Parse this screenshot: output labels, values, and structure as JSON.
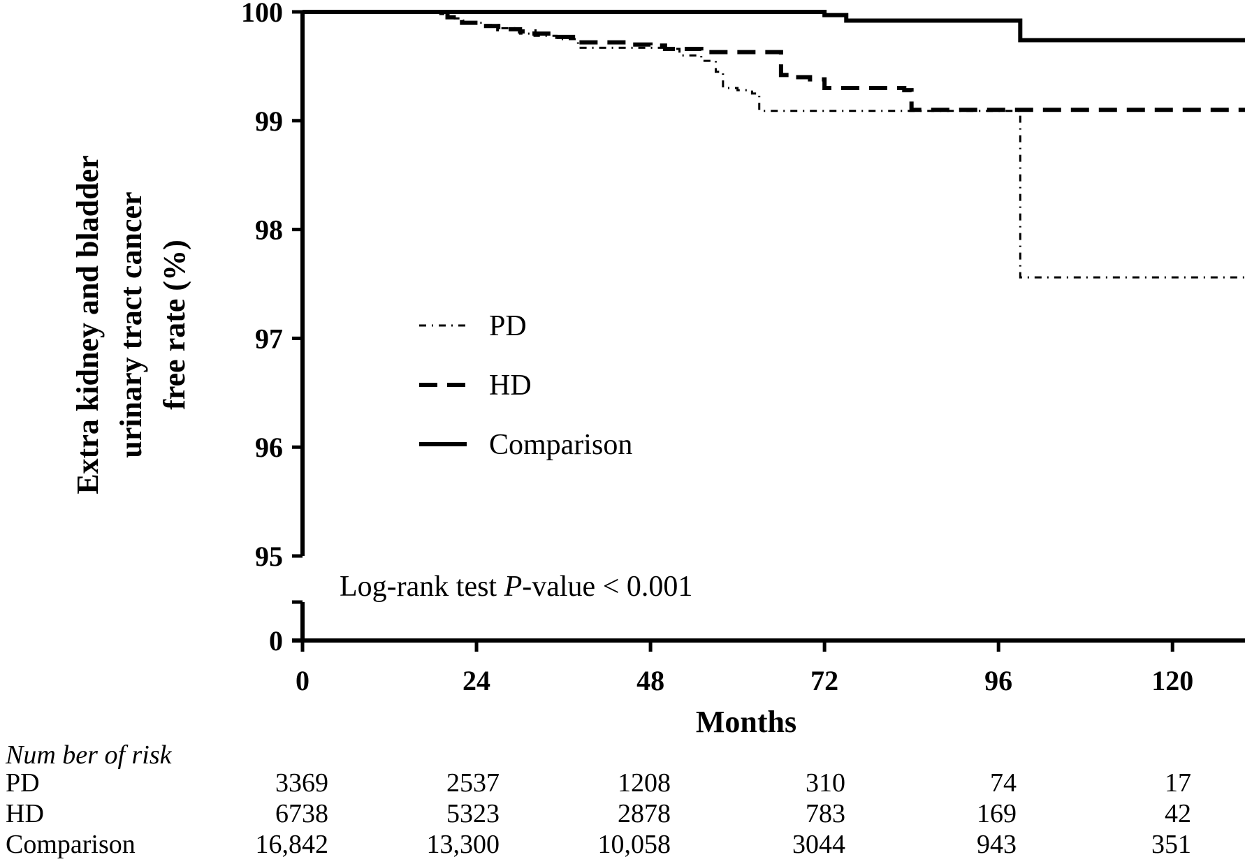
{
  "chart_data": {
    "type": "line",
    "ylabel_lines": [
      "Extra kidney and bladder",
      "urinary tract cancer",
      "free rate (%)"
    ],
    "xlabel": "Months",
    "x_ticks": [
      "0",
      "24",
      "48",
      "72",
      "96",
      "120"
    ],
    "y_ticks": [
      "95",
      "96",
      "97",
      "98",
      "99",
      "100"
    ],
    "y_break_tick": "0",
    "xlim": [
      0,
      130
    ],
    "ylim": [
      95,
      100
    ],
    "annotation": {
      "prefix": "Log-rank test ",
      "italic": "P",
      "suffix": "-value < 0.001"
    },
    "legend_position": "center-left",
    "series": [
      {
        "name": "PD",
        "dash": "dashdot",
        "x": [
          0,
          18,
          19,
          20,
          21,
          22,
          23,
          25,
          27,
          30,
          32,
          35,
          38,
          40,
          42,
          44,
          48,
          50,
          52,
          55,
          57,
          58,
          60,
          62,
          63,
          66,
          70,
          75,
          80,
          85,
          90,
          95,
          98,
          99,
          130
        ],
        "y": [
          100,
          100,
          99.98,
          99.96,
          99.94,
          99.92,
          99.9,
          99.88,
          99.85,
          99.8,
          99.78,
          99.75,
          99.67,
          99.67,
          99.67,
          99.67,
          99.67,
          99.66,
          99.6,
          99.55,
          99.45,
          99.3,
          99.28,
          99.25,
          99.09,
          99.09,
          99.09,
          99.09,
          99.09,
          99.09,
          99.09,
          99.09,
          99.09,
          97.56,
          97.56
        ]
      },
      {
        "name": "HD",
        "dash": "dashed",
        "x": [
          0,
          18,
          20,
          22,
          25,
          27,
          30,
          32,
          35,
          38,
          45,
          48,
          50,
          55,
          60,
          65,
          66,
          68,
          70,
          72,
          75,
          80,
          83,
          84,
          85,
          90,
          95,
          100,
          110,
          130
        ],
        "y": [
          100,
          100,
          99.95,
          99.9,
          99.87,
          99.84,
          99.82,
          99.8,
          99.77,
          99.72,
          99.7,
          99.69,
          99.66,
          99.63,
          99.63,
          99.63,
          99.42,
          99.4,
          99.38,
          99.3,
          99.3,
          99.3,
          99.28,
          99.1,
          99.1,
          99.1,
          99.1,
          99.1,
          99.1,
          99.1
        ]
      },
      {
        "name": "Comparison",
        "dash": "solid",
        "x": [
          0,
          70,
          72,
          75,
          80,
          85,
          90,
          95,
          98,
          99,
          110,
          120,
          130
        ],
        "y": [
          100,
          100,
          99.97,
          99.92,
          99.92,
          99.92,
          99.92,
          99.92,
          99.92,
          99.74,
          99.74,
          99.74,
          99.74
        ]
      }
    ]
  },
  "risk_table": {
    "title": "Num ber of risk",
    "rows": [
      {
        "label": "PD",
        "values": [
          "3369",
          "2537",
          "1208",
          "310",
          "74",
          "17"
        ]
      },
      {
        "label": "HD",
        "values": [
          "6738",
          "5323",
          "2878",
          "783",
          "169",
          "42"
        ]
      },
      {
        "label": "Comparison",
        "values": [
          "16,842",
          "13,300",
          "10,058",
          "3044",
          "943",
          "351"
        ]
      }
    ]
  }
}
